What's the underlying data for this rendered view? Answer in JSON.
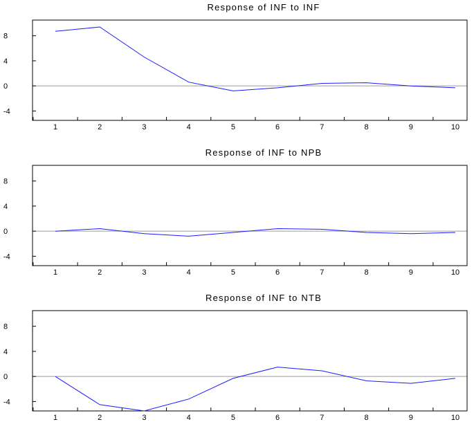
{
  "chart_data": [
    {
      "type": "line",
      "title": "Response of INF to INF",
      "x": [
        1,
        2,
        3,
        4,
        5,
        6,
        7,
        8,
        9,
        10
      ],
      "series": [
        {
          "values": [
            8.7,
            9.4,
            4.6,
            0.6,
            -0.8,
            -0.3,
            0.4,
            0.5,
            0.0,
            -0.3
          ]
        }
      ],
      "ylim": [
        -5.5,
        10.5
      ],
      "yticks": [
        -4,
        0,
        4,
        8
      ],
      "xticks": [
        "1",
        "2",
        "3",
        "4",
        "5",
        "6",
        "7",
        "8",
        "9",
        "10"
      ],
      "reference_line": 0,
      "grid": false
    },
    {
      "type": "line",
      "title": "Response of INF to NPB",
      "x": [
        1,
        2,
        3,
        4,
        5,
        6,
        7,
        8,
        9,
        10
      ],
      "series": [
        {
          "values": [
            0.0,
            0.4,
            -0.4,
            -0.8,
            -0.2,
            0.4,
            0.3,
            -0.2,
            -0.4,
            -0.2
          ]
        }
      ],
      "ylim": [
        -5.5,
        10.5
      ],
      "yticks": [
        -4,
        0,
        4,
        8
      ],
      "xticks": [
        "1",
        "2",
        "3",
        "4",
        "5",
        "6",
        "7",
        "8",
        "9",
        "10"
      ],
      "reference_line": 0,
      "grid": false
    },
    {
      "type": "line",
      "title": "Response of INF to NTB",
      "x": [
        1,
        2,
        3,
        4,
        5,
        6,
        7,
        8,
        9,
        10
      ],
      "series": [
        {
          "values": [
            0.0,
            -4.5,
            -5.5,
            -3.6,
            -0.3,
            1.5,
            0.9,
            -0.7,
            -1.1,
            -0.3
          ]
        }
      ],
      "ylim": [
        -5.5,
        10.5
      ],
      "yticks": [
        -4,
        0,
        4,
        8
      ],
      "xticks": [
        "1",
        "2",
        "3",
        "4",
        "5",
        "6",
        "7",
        "8",
        "9",
        "10"
      ],
      "reference_line": 0,
      "grid": false
    }
  ],
  "colors": {
    "series": "#1a1aff",
    "zero_line": "#9a9a9a",
    "frame": "#000000"
  }
}
